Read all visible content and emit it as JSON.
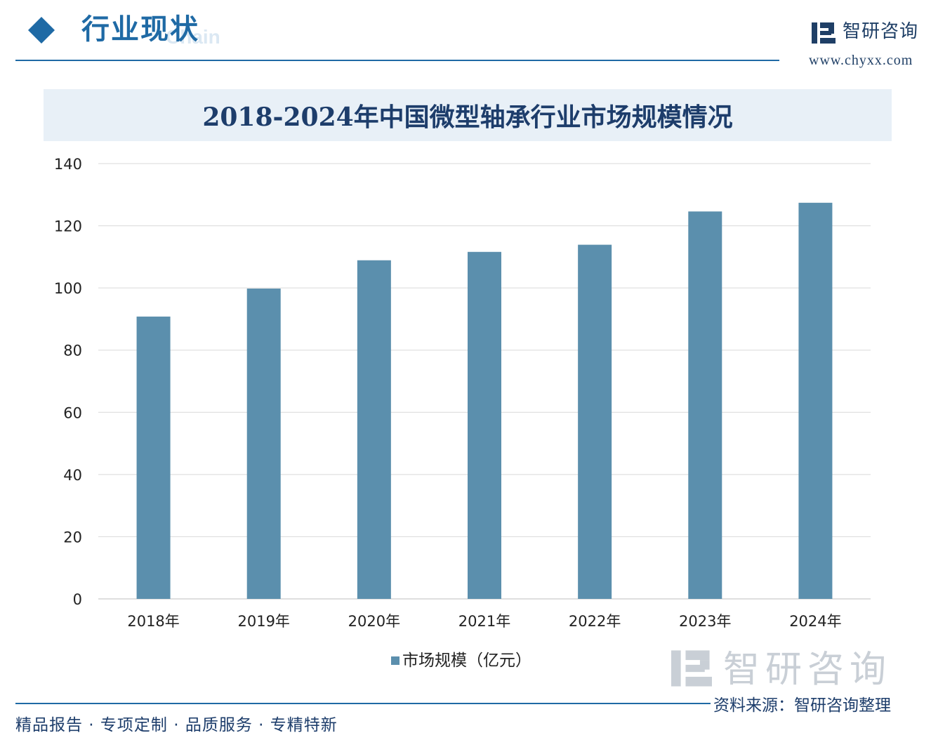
{
  "header": {
    "section_title": "行业现状",
    "section_subtitle_en": "Chain"
  },
  "brand": {
    "name": "智研咨询",
    "url": "www.chyxx.com"
  },
  "colors": {
    "primary_blue": "#1f6aa5",
    "bar": "#5b8fad",
    "gridline": "#d9d9d9",
    "banner": "#e8f0f7"
  },
  "chart_data": {
    "type": "bar",
    "title": "2018-2024年中国微型轴承行业市场规模情况",
    "categories": [
      "2018年",
      "2019年",
      "2020年",
      "2021年",
      "2022年",
      "2023年",
      "2024年"
    ],
    "series": [
      {
        "name": "市场规模（亿元）",
        "values": [
          90.8,
          99.8,
          108.9,
          111.6,
          113.9,
          124.6,
          127.4
        ]
      }
    ],
    "ylim": [
      0,
      140
    ],
    "yticks": [
      0,
      20,
      40,
      60,
      80,
      100,
      120,
      140
    ],
    "grid": true,
    "legend_position": "bottom"
  },
  "footer": {
    "bottom_brand": "智研咨询",
    "source": "资料来源：智研咨询整理",
    "slogan": "精品报告 · 专项定制 · 品质服务 · 专精特新"
  }
}
